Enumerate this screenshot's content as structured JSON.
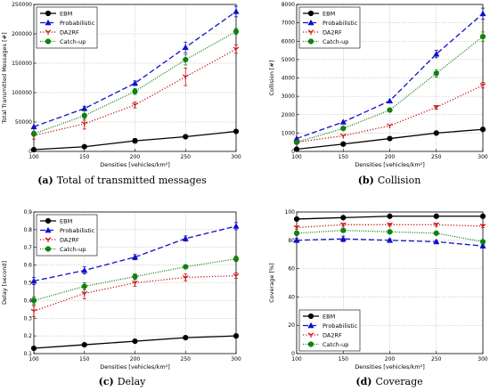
{
  "chart_data": [
    {
      "type": "line",
      "caption_label": "(a)",
      "caption_text": "Total of transmitted messages",
      "xlabel": "Densities [vehicles/km²]",
      "ylabel": "Total Transmitted Messages [#]",
      "x": [
        100,
        150,
        200,
        250,
        300
      ],
      "xlim": [
        100,
        300
      ],
      "xticks": [
        "100",
        "150",
        "200",
        "250",
        "300"
      ],
      "ylim": [
        0,
        250000
      ],
      "yticks": [
        "0",
        "50000",
        "100000",
        "150000",
        "200000",
        "250000"
      ],
      "grid": true,
      "legend_position": "upper-left",
      "series": [
        {
          "name": "EBM",
          "values": [
            3000,
            8000,
            18000,
            25000,
            34000
          ],
          "err": [
            0,
            0,
            4000,
            0,
            0
          ],
          "color": "#000000",
          "dash": "",
          "marker": "circle"
        },
        {
          "name": "Probabilistic",
          "values": [
            42000,
            73000,
            116000,
            177000,
            238000
          ],
          "err": [
            0,
            4000,
            4000,
            9000,
            9000
          ],
          "color": "#1010c8",
          "dash": "6,3",
          "marker": "triangle"
        },
        {
          "name": "DA2RF",
          "values": [
            27000,
            47000,
            79000,
            127000,
            174000
          ],
          "err": [
            6000,
            9000,
            5000,
            15000,
            7000
          ],
          "color": "#c81010",
          "dash": "1.2,2",
          "marker": "tri-down"
        },
        {
          "name": "Catch-up",
          "values": [
            30000,
            61000,
            102000,
            156000,
            204000
          ],
          "err": [
            4000,
            8000,
            5000,
            9000,
            5000
          ],
          "color": "#108010",
          "dash": "1,1.5",
          "marker": "circle"
        }
      ]
    },
    {
      "type": "line",
      "caption_label": "(b)",
      "caption_text": "Collision",
      "xlabel": "Densities [vehicles/km²]",
      "ylabel": "Collision [#]",
      "x": [
        100,
        150,
        200,
        250,
        300
      ],
      "xlim": [
        100,
        300
      ],
      "xticks": [
        "100",
        "150",
        "200",
        "250",
        "300"
      ],
      "ylim": [
        0,
        8000
      ],
      "yticks": [
        "0",
        "1000",
        "2000",
        "3000",
        "4000",
        "5000",
        "6000",
        "7000",
        "8000"
      ],
      "grid": true,
      "legend_position": "upper-left",
      "series": [
        {
          "name": "EBM",
          "values": [
            120,
            400,
            700,
            1000,
            1200
          ],
          "err": [
            0,
            0,
            0,
            0,
            0
          ],
          "color": "#000000",
          "dash": "",
          "marker": "circle"
        },
        {
          "name": "Probabilistic",
          "values": [
            700,
            1600,
            2750,
            5300,
            7500
          ],
          "err": [
            0,
            0,
            0,
            200,
            300
          ],
          "color": "#1010c8",
          "dash": "6,3",
          "marker": "triangle"
        },
        {
          "name": "DA2RF",
          "values": [
            500,
            850,
            1400,
            2400,
            3600
          ],
          "err": [
            100,
            0,
            0,
            100,
            150
          ],
          "color": "#c81010",
          "dash": "1.2,2",
          "marker": "tri-down"
        },
        {
          "name": "Catch-up",
          "values": [
            500,
            1250,
            2250,
            4250,
            6250
          ],
          "err": [
            100,
            0,
            0,
            200,
            250
          ],
          "color": "#108010",
          "dash": "1,1.5",
          "marker": "circle"
        }
      ]
    },
    {
      "type": "line",
      "caption_label": "(c)",
      "caption_text": "Delay",
      "xlabel": "Densities [vehicles/km²]",
      "ylabel": "Delay [second]",
      "x": [
        100,
        150,
        200,
        250,
        300
      ],
      "xlim": [
        100,
        300
      ],
      "xticks": [
        "100",
        "150",
        "200",
        "250",
        "300"
      ],
      "ylim": [
        0.1,
        0.9
      ],
      "yticks": [
        "0.1",
        "0.2",
        "0.3",
        "0.4",
        "0.5",
        "0.6",
        "0.7",
        "0.8",
        "0.9"
      ],
      "grid": true,
      "legend_position": "upper-left",
      "series": [
        {
          "name": "EBM",
          "values": [
            0.13,
            0.15,
            0.17,
            0.19,
            0.2
          ],
          "err": [
            0,
            0,
            0,
            0,
            0
          ],
          "color": "#000000",
          "dash": "",
          "marker": "circle"
        },
        {
          "name": "Probabilistic",
          "values": [
            0.51,
            0.57,
            0.645,
            0.75,
            0.82
          ],
          "err": [
            0.02,
            0.02,
            0.015,
            0.015,
            0.02
          ],
          "color": "#1010c8",
          "dash": "6,3",
          "marker": "triangle"
        },
        {
          "name": "DA2RF",
          "values": [
            0.34,
            0.44,
            0.5,
            0.53,
            0.54
          ],
          "err": [
            0.03,
            0.03,
            0.02,
            0.02,
            0.015
          ],
          "color": "#c81010",
          "dash": "1.2,2",
          "marker": "tri-down"
        },
        {
          "name": "Catch-up",
          "values": [
            0.4,
            0.48,
            0.535,
            0.59,
            0.635
          ],
          "err": [
            0.02,
            0.02,
            0.015,
            0.01,
            0.015
          ],
          "color": "#108010",
          "dash": "1,1.5",
          "marker": "circle"
        }
      ]
    },
    {
      "type": "line",
      "caption_label": "(d)",
      "caption_text": "Coverage",
      "xlabel": "Densities [vehicles/km²]",
      "ylabel": "Coverage [%]",
      "x": [
        100,
        150,
        200,
        250,
        300
      ],
      "xlim": [
        100,
        300
      ],
      "xticks": [
        "100",
        "150",
        "200",
        "250",
        "300"
      ],
      "ylim": [
        0,
        100
      ],
      "yticks": [
        "0",
        "20",
        "40",
        "60",
        "80",
        "100"
      ],
      "grid": true,
      "legend_position": "lower-left",
      "series": [
        {
          "name": "EBM",
          "values": [
            95,
            96,
            97,
            97,
            97
          ],
          "err": [
            0,
            0,
            0,
            0,
            0
          ],
          "color": "#000000",
          "dash": "",
          "marker": "circle"
        },
        {
          "name": "Probabilistic",
          "values": [
            80,
            81,
            80,
            79,
            76
          ],
          "err": [
            1.5,
            2,
            1,
            1,
            1
          ],
          "color": "#1010c8",
          "dash": "6,3",
          "marker": "triangle"
        },
        {
          "name": "DA2RF",
          "values": [
            89,
            91,
            91,
            91,
            90
          ],
          "err": [
            1,
            1,
            1,
            1,
            1
          ],
          "color": "#c81010",
          "dash": "1.2,2",
          "marker": "tri-down"
        },
        {
          "name": "Catch-up",
          "values": [
            85,
            87,
            86,
            85,
            79
          ],
          "err": [
            1.5,
            1.5,
            1,
            1,
            1
          ],
          "color": "#108010",
          "dash": "1,1.5",
          "marker": "circle"
        }
      ]
    }
  ]
}
